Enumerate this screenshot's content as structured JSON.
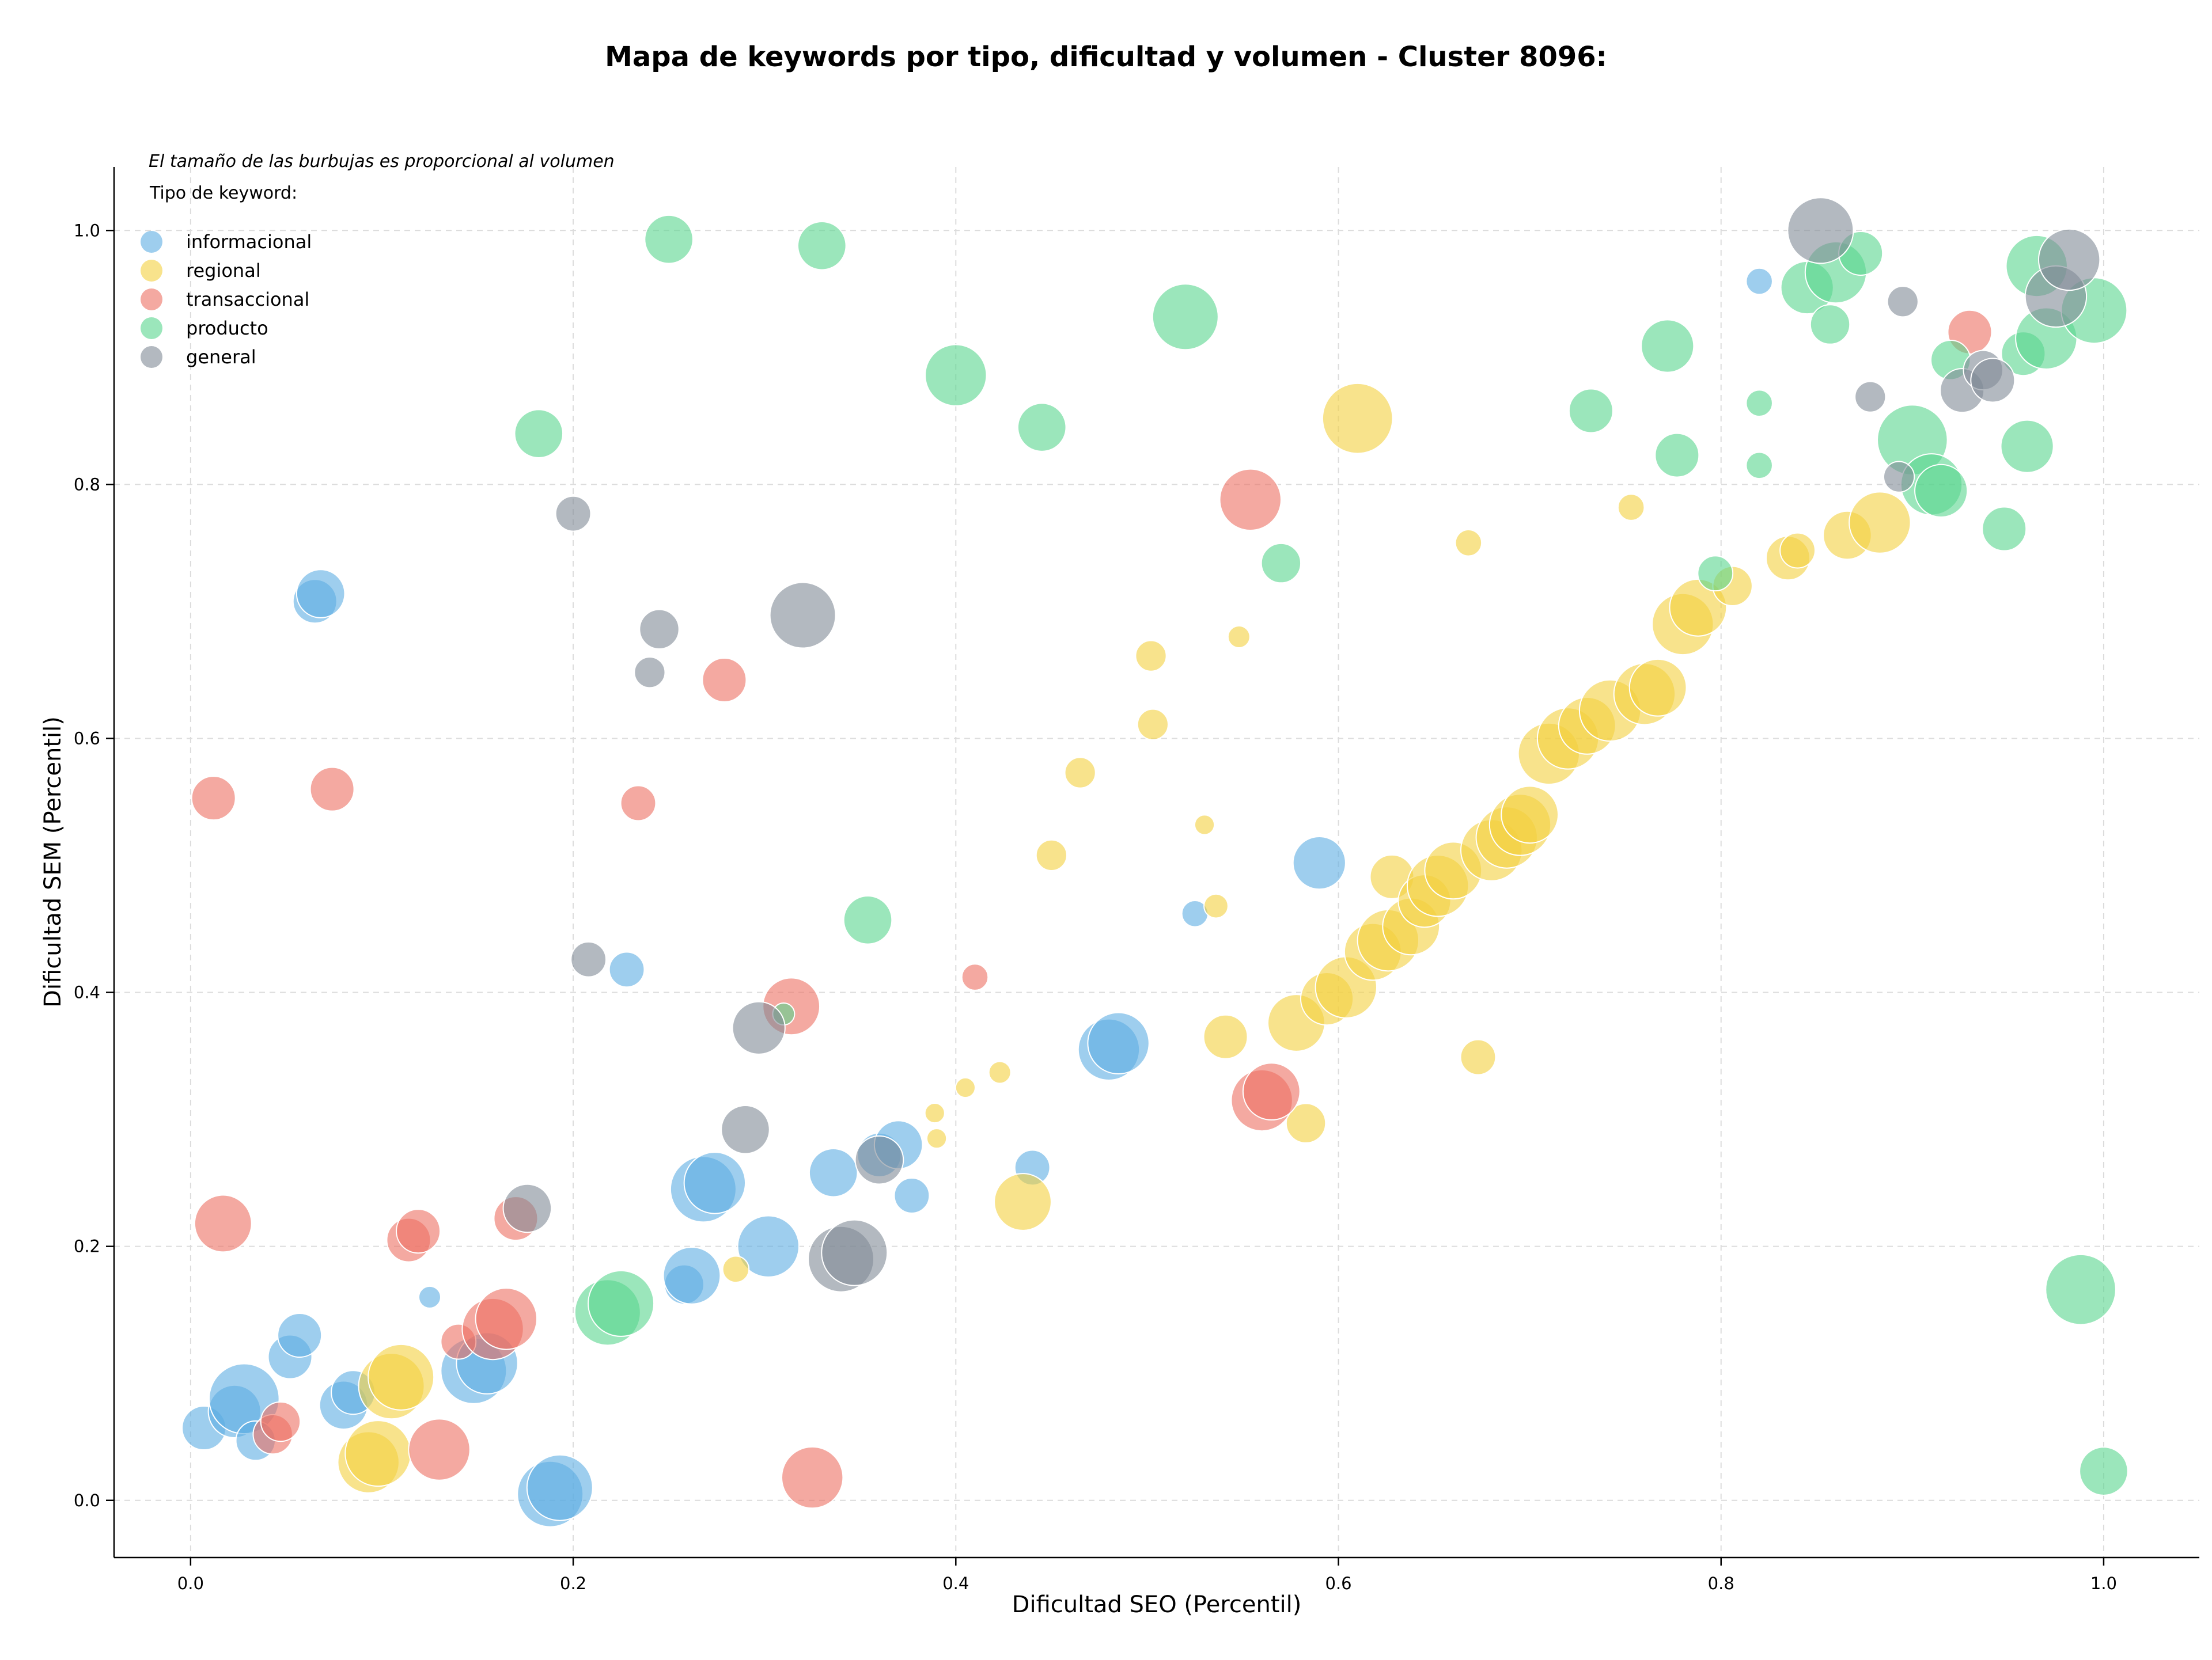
{
  "chart_data": {
    "type": "scatter",
    "title": "Mapa de keywords por tipo, dificultad y volumen - Cluster 8096:",
    "xlabel": "Dificultad SEO (Percentil)",
    "ylabel": "Dificultad SEM (Percentil)",
    "xlim": [
      -0.04,
      1.05
    ],
    "ylim": [
      -0.045,
      1.05
    ],
    "xticks": [
      "0.0",
      "0.2",
      "0.4",
      "0.6",
      "0.8",
      "1.0"
    ],
    "yticks": [
      "0.0",
      "0.2",
      "0.4",
      "0.6",
      "0.8",
      "1.0"
    ],
    "grid": true,
    "note": "El tamaño de las burbujas es proporcional al volumen",
    "legend_title": "Tipo de keyword:",
    "legend_position": "upper-left",
    "series": [
      {
        "name": "informacional",
        "color": "#5dade2",
        "points": [
          {
            "x": 0.007,
            "y": 0.057,
            "size": 1.0
          },
          {
            "x": 0.023,
            "y": 0.07,
            "size": 1.2
          },
          {
            "x": 0.028,
            "y": 0.08,
            "size": 1.6
          },
          {
            "x": 0.034,
            "y": 0.047,
            "size": 0.9
          },
          {
            "x": 0.052,
            "y": 0.113,
            "size": 1.0
          },
          {
            "x": 0.057,
            "y": 0.13,
            "size": 1.0
          },
          {
            "x": 0.065,
            "y": 0.708,
            "size": 1.0
          },
          {
            "x": 0.068,
            "y": 0.714,
            "size": 1.1
          },
          {
            "x": 0.08,
            "y": 0.075,
            "size": 1.1
          },
          {
            "x": 0.085,
            "y": 0.085,
            "size": 1.0
          },
          {
            "x": 0.125,
            "y": 0.16,
            "size": 0.5
          },
          {
            "x": 0.148,
            "y": 0.102,
            "size": 1.5
          },
          {
            "x": 0.155,
            "y": 0.108,
            "size": 1.4
          },
          {
            "x": 0.188,
            "y": 0.005,
            "size": 1.5
          },
          {
            "x": 0.193,
            "y": 0.01,
            "size": 1.5
          },
          {
            "x": 0.228,
            "y": 0.418,
            "size": 0.8
          },
          {
            "x": 0.258,
            "y": 0.17,
            "size": 0.9
          },
          {
            "x": 0.262,
            "y": 0.177,
            "size": 1.3
          },
          {
            "x": 0.268,
            "y": 0.245,
            "size": 1.5
          },
          {
            "x": 0.274,
            "y": 0.25,
            "size": 1.4
          },
          {
            "x": 0.302,
            "y": 0.2,
            "size": 1.4
          },
          {
            "x": 0.336,
            "y": 0.258,
            "size": 1.1
          },
          {
            "x": 0.36,
            "y": 0.272,
            "size": 1.0
          },
          {
            "x": 0.37,
            "y": 0.28,
            "size": 1.1
          },
          {
            "x": 0.377,
            "y": 0.24,
            "size": 0.8
          },
          {
            "x": 0.44,
            "y": 0.262,
            "size": 0.8
          },
          {
            "x": 0.48,
            "y": 0.355,
            "size": 1.4
          },
          {
            "x": 0.485,
            "y": 0.36,
            "size": 1.4
          },
          {
            "x": 0.525,
            "y": 0.462,
            "size": 0.6
          },
          {
            "x": 0.59,
            "y": 0.502,
            "size": 1.2
          },
          {
            "x": 0.82,
            "y": 0.96,
            "size": 0.6
          }
        ]
      },
      {
        "name": "regional",
        "color": "#f4d03f",
        "points": [
          {
            "x": 0.093,
            "y": 0.03,
            "size": 1.4
          },
          {
            "x": 0.098,
            "y": 0.037,
            "size": 1.5
          },
          {
            "x": 0.105,
            "y": 0.09,
            "size": 1.5
          },
          {
            "x": 0.11,
            "y": 0.097,
            "size": 1.5
          },
          {
            "x": 0.285,
            "y": 0.182,
            "size": 0.6
          },
          {
            "x": 0.389,
            "y": 0.305,
            "size": 0.45
          },
          {
            "x": 0.39,
            "y": 0.285,
            "size": 0.45
          },
          {
            "x": 0.405,
            "y": 0.325,
            "size": 0.45
          },
          {
            "x": 0.423,
            "y": 0.337,
            "size": 0.5
          },
          {
            "x": 0.435,
            "y": 0.235,
            "size": 1.3
          },
          {
            "x": 0.45,
            "y": 0.508,
            "size": 0.7
          },
          {
            "x": 0.465,
            "y": 0.573,
            "size": 0.7
          },
          {
            "x": 0.502,
            "y": 0.665,
            "size": 0.7
          },
          {
            "x": 0.503,
            "y": 0.611,
            "size": 0.7
          },
          {
            "x": 0.53,
            "y": 0.532,
            "size": 0.45
          },
          {
            "x": 0.536,
            "y": 0.468,
            "size": 0.55
          },
          {
            "x": 0.541,
            "y": 0.365,
            "size": 1.0
          },
          {
            "x": 0.548,
            "y": 0.68,
            "size": 0.5
          },
          {
            "x": 0.578,
            "y": 0.376,
            "size": 1.3
          },
          {
            "x": 0.583,
            "y": 0.297,
            "size": 0.9
          },
          {
            "x": 0.594,
            "y": 0.395,
            "size": 1.2
          },
          {
            "x": 0.604,
            "y": 0.404,
            "size": 1.4
          },
          {
            "x": 0.61,
            "y": 0.852,
            "size": 1.6
          },
          {
            "x": 0.618,
            "y": 0.432,
            "size": 1.3
          },
          {
            "x": 0.626,
            "y": 0.441,
            "size": 1.4
          },
          {
            "x": 0.628,
            "y": 0.491,
            "size": 1.0
          },
          {
            "x": 0.638,
            "y": 0.452,
            "size": 1.3
          },
          {
            "x": 0.645,
            "y": 0.472,
            "size": 1.2
          },
          {
            "x": 0.652,
            "y": 0.484,
            "size": 1.4
          },
          {
            "x": 0.66,
            "y": 0.496,
            "size": 1.3
          },
          {
            "x": 0.668,
            "y": 0.754,
            "size": 0.6
          },
          {
            "x": 0.673,
            "y": 0.349,
            "size": 0.8
          },
          {
            "x": 0.68,
            "y": 0.512,
            "size": 1.4
          },
          {
            "x": 0.688,
            "y": 0.522,
            "size": 1.4
          },
          {
            "x": 0.695,
            "y": 0.532,
            "size": 1.4
          },
          {
            "x": 0.7,
            "y": 0.54,
            "size": 1.3
          },
          {
            "x": 0.71,
            "y": 0.588,
            "size": 1.4
          },
          {
            "x": 0.72,
            "y": 0.6,
            "size": 1.4
          },
          {
            "x": 0.73,
            "y": 0.61,
            "size": 1.3
          },
          {
            "x": 0.742,
            "y": 0.622,
            "size": 1.4
          },
          {
            "x": 0.753,
            "y": 0.782,
            "size": 0.6
          },
          {
            "x": 0.76,
            "y": 0.635,
            "size": 1.4
          },
          {
            "x": 0.767,
            "y": 0.64,
            "size": 1.3
          },
          {
            "x": 0.78,
            "y": 0.69,
            "size": 1.4
          },
          {
            "x": 0.788,
            "y": 0.703,
            "size": 1.3
          },
          {
            "x": 0.806,
            "y": 0.72,
            "size": 0.9
          },
          {
            "x": 0.835,
            "y": 0.742,
            "size": 1.0
          },
          {
            "x": 0.84,
            "y": 0.748,
            "size": 0.8
          },
          {
            "x": 0.866,
            "y": 0.76,
            "size": 1.1
          },
          {
            "x": 0.883,
            "y": 0.77,
            "size": 1.4
          }
        ]
      },
      {
        "name": "transaccional",
        "color": "#ec7063",
        "points": [
          {
            "x": 0.012,
            "y": 0.553,
            "size": 1.0
          },
          {
            "x": 0.017,
            "y": 0.218,
            "size": 1.3
          },
          {
            "x": 0.043,
            "y": 0.052,
            "size": 0.9
          },
          {
            "x": 0.047,
            "y": 0.062,
            "size": 0.9
          },
          {
            "x": 0.074,
            "y": 0.56,
            "size": 1.0
          },
          {
            "x": 0.114,
            "y": 0.205,
            "size": 1.0
          },
          {
            "x": 0.119,
            "y": 0.212,
            "size": 1.0
          },
          {
            "x": 0.13,
            "y": 0.04,
            "size": 1.4
          },
          {
            "x": 0.14,
            "y": 0.125,
            "size": 0.8
          },
          {
            "x": 0.158,
            "y": 0.135,
            "size": 1.4
          },
          {
            "x": 0.165,
            "y": 0.143,
            "size": 1.4
          },
          {
            "x": 0.17,
            "y": 0.222,
            "size": 1.0
          },
          {
            "x": 0.234,
            "y": 0.549,
            "size": 0.8
          },
          {
            "x": 0.279,
            "y": 0.646,
            "size": 1.0
          },
          {
            "x": 0.314,
            "y": 0.389,
            "size": 1.3
          },
          {
            "x": 0.325,
            "y": 0.018,
            "size": 1.4
          },
          {
            "x": 0.41,
            "y": 0.412,
            "size": 0.6
          },
          {
            "x": 0.554,
            "y": 0.788,
            "size": 1.4
          },
          {
            "x": 0.56,
            "y": 0.315,
            "size": 1.4
          },
          {
            "x": 0.565,
            "y": 0.322,
            "size": 1.3
          },
          {
            "x": 0.93,
            "y": 0.92,
            "size": 1.0
          }
        ]
      },
      {
        "name": "producto",
        "color": "#58d68d",
        "points": [
          {
            "x": 0.182,
            "y": 0.84,
            "size": 1.1
          },
          {
            "x": 0.218,
            "y": 0.148,
            "size": 1.5
          },
          {
            "x": 0.225,
            "y": 0.155,
            "size": 1.5
          },
          {
            "x": 0.25,
            "y": 0.993,
            "size": 1.1
          },
          {
            "x": 0.31,
            "y": 0.383,
            "size": 0.5
          },
          {
            "x": 0.33,
            "y": 0.988,
            "size": 1.1
          },
          {
            "x": 0.354,
            "y": 0.457,
            "size": 1.1
          },
          {
            "x": 0.4,
            "y": 0.886,
            "size": 1.4
          },
          {
            "x": 0.445,
            "y": 0.845,
            "size": 1.1
          },
          {
            "x": 0.52,
            "y": 0.932,
            "size": 1.5
          },
          {
            "x": 0.57,
            "y": 0.738,
            "size": 0.9
          },
          {
            "x": 0.732,
            "y": 0.858,
            "size": 1.0
          },
          {
            "x": 0.772,
            "y": 0.909,
            "size": 1.2
          },
          {
            "x": 0.777,
            "y": 0.823,
            "size": 1.0
          },
          {
            "x": 0.797,
            "y": 0.73,
            "size": 0.8
          },
          {
            "x": 0.82,
            "y": 0.864,
            "size": 0.6
          },
          {
            "x": 0.82,
            "y": 0.815,
            "size": 0.6
          },
          {
            "x": 0.845,
            "y": 0.955,
            "size": 1.2
          },
          {
            "x": 0.857,
            "y": 0.926,
            "size": 0.9
          },
          {
            "x": 0.86,
            "y": 0.967,
            "size": 1.4
          },
          {
            "x": 0.873,
            "y": 0.982,
            "size": 1.0
          },
          {
            "x": 0.9,
            "y": 0.835,
            "size": 1.6
          },
          {
            "x": 0.91,
            "y": 0.8,
            "size": 1.4
          },
          {
            "x": 0.915,
            "y": 0.795,
            "size": 1.2
          },
          {
            "x": 0.92,
            "y": 0.898,
            "size": 0.9
          },
          {
            "x": 0.948,
            "y": 0.765,
            "size": 1.0
          },
          {
            "x": 0.958,
            "y": 0.903,
            "size": 1.0
          },
          {
            "x": 0.96,
            "y": 0.83,
            "size": 1.2
          },
          {
            "x": 0.965,
            "y": 0.972,
            "size": 1.4
          },
          {
            "x": 0.97,
            "y": 0.915,
            "size": 1.4
          },
          {
            "x": 0.988,
            "y": 0.166,
            "size": 1.6
          },
          {
            "x": 0.995,
            "y": 0.937,
            "size": 1.5
          },
          {
            "x": 1.0,
            "y": 0.023,
            "size": 1.1
          }
        ]
      },
      {
        "name": "general",
        "color": "#808b96",
        "points": [
          {
            "x": 0.176,
            "y": 0.23,
            "size": 1.1
          },
          {
            "x": 0.2,
            "y": 0.777,
            "size": 0.8
          },
          {
            "x": 0.208,
            "y": 0.426,
            "size": 0.8
          },
          {
            "x": 0.24,
            "y": 0.652,
            "size": 0.7
          },
          {
            "x": 0.245,
            "y": 0.686,
            "size": 0.9
          },
          {
            "x": 0.29,
            "y": 0.292,
            "size": 1.1
          },
          {
            "x": 0.297,
            "y": 0.372,
            "size": 1.2
          },
          {
            "x": 0.32,
            "y": 0.697,
            "size": 1.5
          },
          {
            "x": 0.34,
            "y": 0.19,
            "size": 1.5
          },
          {
            "x": 0.347,
            "y": 0.195,
            "size": 1.5
          },
          {
            "x": 0.36,
            "y": 0.268,
            "size": 1.1
          },
          {
            "x": 0.852,
            "y": 1.0,
            "size": 1.5
          },
          {
            "x": 0.878,
            "y": 0.869,
            "size": 0.7
          },
          {
            "x": 0.893,
            "y": 0.806,
            "size": 0.7
          },
          {
            "x": 0.895,
            "y": 0.944,
            "size": 0.7
          },
          {
            "x": 0.926,
            "y": 0.874,
            "size": 1.0
          },
          {
            "x": 0.937,
            "y": 0.89,
            "size": 0.9
          },
          {
            "x": 0.942,
            "y": 0.882,
            "size": 1.0
          },
          {
            "x": 0.975,
            "y": 0.948,
            "size": 1.4
          },
          {
            "x": 0.982,
            "y": 0.977,
            "size": 1.4
          }
        ]
      }
    ]
  }
}
